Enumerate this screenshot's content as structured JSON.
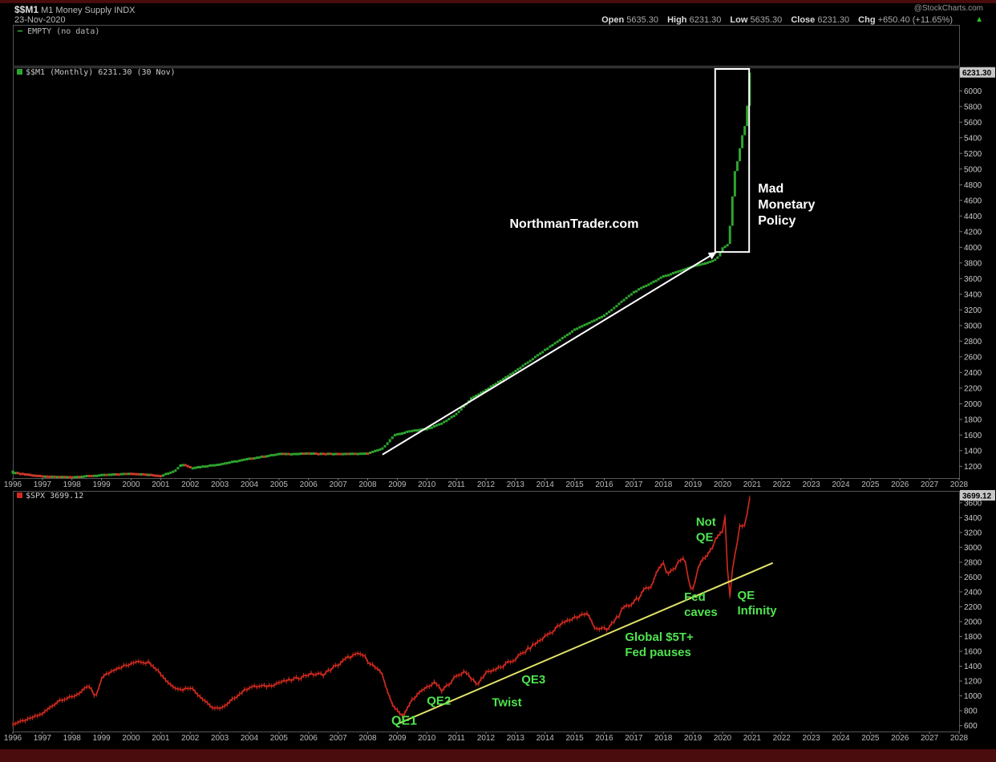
{
  "header": {
    "symbol": "$$M1",
    "description": "M1 Money Supply",
    "exchange": "INDX",
    "date": "23-Nov-2020",
    "source": "@StockCharts.com",
    "open_label": "Open",
    "open": "5635.30",
    "high_label": "High",
    "high": "6231.30",
    "low_label": "Low",
    "low": "5635.30",
    "close_label": "Close",
    "close": "6231.30",
    "chg_label": "Chg",
    "chg": "+650.40 (+11.65%)"
  },
  "top_panel": {
    "label": "EMPTY (no data)"
  },
  "colors": {
    "up": "#2fa52f",
    "down": "#d43a2c",
    "spx": "#d22a1e",
    "trendline": "#e1e36a",
    "annotation": "#4fe34f",
    "price_box": "#c7c7c7"
  },
  "chart_data": [
    {
      "type": "line",
      "label": "$$M1 (Monthly) 6231.30 (30 Nov)",
      "last_value": "6231.30",
      "x_ticks": [
        "1996",
        "1997",
        "1998",
        "1999",
        "2000",
        "2001",
        "2002",
        "2003",
        "2004",
        "2005",
        "2006",
        "2007",
        "2008",
        "2009",
        "2010",
        "2011",
        "2012",
        "2013",
        "2014",
        "2015",
        "2016",
        "2017",
        "2018",
        "2019",
        "2020",
        "2021",
        "2022",
        "2023",
        "2024",
        "2025",
        "2026",
        "2027",
        "2028"
      ],
      "y_ticks": [
        1200,
        1400,
        1600,
        1800,
        2000,
        2200,
        2400,
        2600,
        2800,
        3000,
        3200,
        3400,
        3600,
        3800,
        4000,
        4200,
        4400,
        4600,
        4800,
        5000,
        5200,
        5400,
        5600,
        5800,
        6000
      ],
      "ylim": [
        1050,
        6300
      ],
      "x": [
        1996.0,
        1997.0,
        1998.0,
        1999.0,
        2000.0,
        2001.0,
        2001.5,
        2001.7,
        2002.0,
        2003.0,
        2004.0,
        2005.0,
        2006.0,
        2007.0,
        2008.0,
        2008.5,
        2008.9,
        2009.5,
        2010.0,
        2010.5,
        2011.0,
        2011.5,
        2012.0,
        2013.0,
        2014.0,
        2015.0,
        2016.0,
        2017.0,
        2018.0,
        2019.0,
        2019.5,
        2019.8,
        2020.0,
        2020.2,
        2020.3,
        2020.4,
        2020.5,
        2020.6,
        2020.7,
        2020.8,
        2020.9
      ],
      "values": [
        1130,
        1080,
        1075,
        1100,
        1120,
        1090,
        1160,
        1240,
        1190,
        1240,
        1310,
        1370,
        1375,
        1370,
        1375,
        1440,
        1610,
        1670,
        1690,
        1760,
        1880,
        2080,
        2190,
        2430,
        2700,
        2960,
        3140,
        3440,
        3640,
        3770,
        3820,
        3860,
        4000,
        4050,
        4500,
        4950,
        5100,
        5300,
        5500,
        5600,
        6231.3
      ],
      "annotations": [
        {
          "text": "NorthmanTrader.com",
          "x": 2012.8,
          "y": 4250
        },
        {
          "lines": [
            "Mad",
            "Monetary",
            "Policy"
          ],
          "x": 2021.2,
          "y": 4700
        }
      ],
      "arrow": {
        "from": [
          2008.5,
          1350
        ],
        "to": [
          2019.8,
          3940
        ]
      },
      "highlight_box": {
        "x": [
          2019.75,
          2020.9
        ],
        "y": [
          3940,
          6300
        ]
      }
    },
    {
      "type": "line",
      "label": "$SPX 3699.12",
      "last_value": "3699.12",
      "x_ticks": [
        "1996",
        "1997",
        "1998",
        "1999",
        "2000",
        "2001",
        "2002",
        "2003",
        "2004",
        "2005",
        "2006",
        "2007",
        "2008",
        "2009",
        "2010",
        "2011",
        "2012",
        "2013",
        "2014",
        "2015",
        "2016",
        "2017",
        "2018",
        "2019",
        "2020",
        "2021",
        "2022",
        "2023",
        "2024",
        "2025",
        "2026",
        "2027",
        "2028"
      ],
      "y_ticks": [
        600,
        800,
        1000,
        1200,
        1400,
        1600,
        1800,
        2000,
        2200,
        2400,
        2600,
        2800,
        3000,
        3200,
        3400,
        3600
      ],
      "ylim": [
        520,
        3760
      ],
      "x": [
        1996.0,
        1996.5,
        1997.0,
        1997.6,
        1998.0,
        1998.6,
        1998.8,
        1999.0,
        1999.5,
        2000.0,
        2000.2,
        2000.7,
        2001.0,
        2001.3,
        2001.7,
        2002.0,
        2002.6,
        2002.8,
        2003.2,
        2003.5,
        2004.0,
        2004.6,
        2005.0,
        2005.5,
        2006.0,
        2006.5,
        2007.0,
        2007.4,
        2007.8,
        2008.2,
        2008.5,
        2008.8,
        2009.2,
        2009.5,
        2010.0,
        2010.3,
        2010.5,
        2010.9,
        2011.3,
        2011.7,
        2012.0,
        2012.5,
        2013.0,
        2013.5,
        2014.0,
        2014.5,
        2015.0,
        2015.4,
        2015.7,
        2016.1,
        2016.5,
        2017.0,
        2017.5,
        2018.0,
        2018.1,
        2018.4,
        2018.7,
        2018.95,
        2019.3,
        2019.6,
        2020.0,
        2020.1,
        2020.22,
        2020.4,
        2020.6,
        2020.8,
        2020.9
      ],
      "values": [
        620,
        680,
        760,
        950,
        980,
        1130,
        960,
        1240,
        1380,
        1420,
        1480,
        1440,
        1300,
        1160,
        1080,
        1120,
        900,
        820,
        860,
        980,
        1120,
        1130,
        1180,
        1220,
        1290,
        1290,
        1420,
        1530,
        1560,
        1400,
        1280,
        900,
        720,
        950,
        1120,
        1180,
        1060,
        1230,
        1340,
        1140,
        1320,
        1380,
        1500,
        1650,
        1800,
        1950,
        2060,
        2110,
        1920,
        1880,
        2100,
        2280,
        2450,
        2820,
        2650,
        2720,
        2900,
        2400,
        2850,
        2950,
        3240,
        3380,
        2250,
        2900,
        3280,
        3300,
        3699.12
      ],
      "annotations": [
        {
          "text": "QE1",
          "x": 2008.8,
          "y": 610
        },
        {
          "text": "QE2",
          "x": 2010.0,
          "y": 880
        },
        {
          "text": "Twist",
          "x": 2012.2,
          "y": 860
        },
        {
          "text": "QE3",
          "x": 2013.2,
          "y": 1170
        },
        {
          "lines": [
            "Global $5T+",
            "Fed pauses"
          ],
          "x": 2016.7,
          "y": 1740
        },
        {
          "lines": [
            "Fed",
            "caves"
          ],
          "x": 2018.7,
          "y": 2280
        },
        {
          "lines": [
            "Not",
            "QE"
          ],
          "x": 2019.1,
          "y": 3290
        },
        {
          "lines": [
            "QE",
            "Infinity"
          ],
          "x": 2020.5,
          "y": 2300
        }
      ],
      "trendline": {
        "from": [
          2009.0,
          620
        ],
        "to": [
          2021.7,
          2790
        ]
      }
    }
  ]
}
